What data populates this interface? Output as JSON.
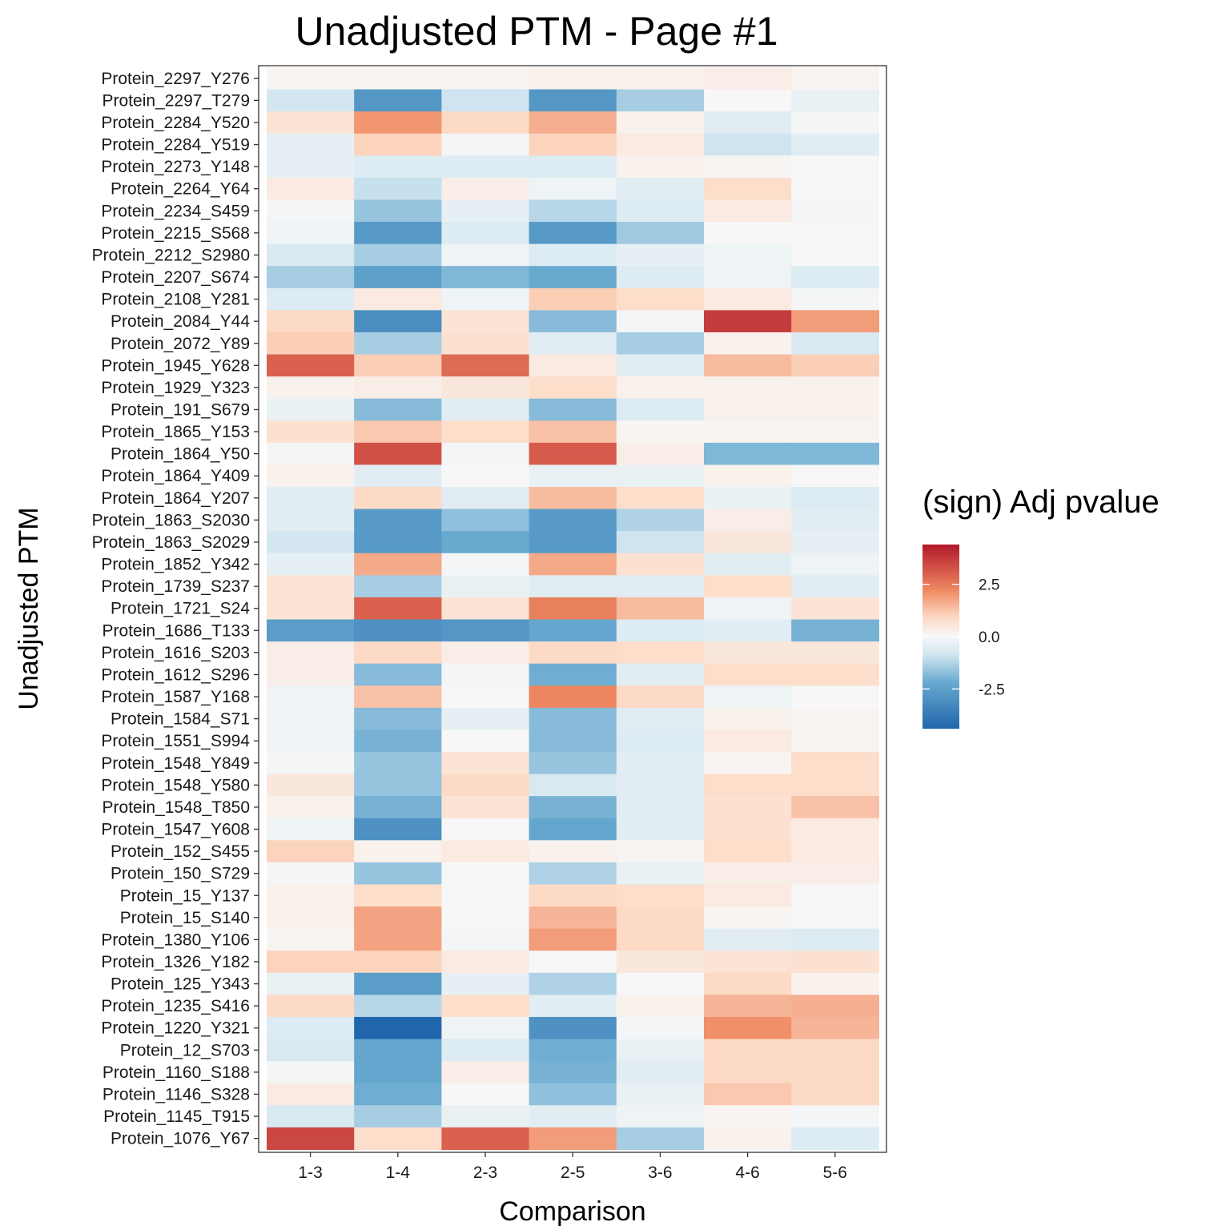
{
  "chart_data": {
    "type": "heatmap",
    "title": "Unadjusted PTM - Page #1",
    "xlabel": "Comparison",
    "ylabel": "Unadjusted PTM",
    "x": [
      "1-3",
      "1-4",
      "2-3",
      "2-5",
      "3-6",
      "4-6",
      "5-6"
    ],
    "y": [
      "Protein_2297_Y276",
      "Protein_2297_T279",
      "Protein_2284_Y520",
      "Protein_2284_Y519",
      "Protein_2273_Y148",
      "Protein_2264_Y64",
      "Protein_2234_S459",
      "Protein_2215_S568",
      "Protein_2212_S2980",
      "Protein_2207_S674",
      "Protein_2108_Y281",
      "Protein_2084_Y44",
      "Protein_2072_Y89",
      "Protein_1945_Y628",
      "Protein_1929_Y323",
      "Protein_191_S679",
      "Protein_1865_Y153",
      "Protein_1864_Y50",
      "Protein_1864_Y409",
      "Protein_1864_Y207",
      "Protein_1863_S2030",
      "Protein_1863_S2029",
      "Protein_1852_Y342",
      "Protein_1739_S237",
      "Protein_1721_S24",
      "Protein_1686_T133",
      "Protein_1616_S203",
      "Protein_1612_S296",
      "Protein_1587_Y168",
      "Protein_1584_S71",
      "Protein_1551_S994",
      "Protein_1548_Y849",
      "Protein_1548_Y580",
      "Protein_1548_T850",
      "Protein_1547_Y608",
      "Protein_152_S455",
      "Protein_150_S729",
      "Protein_15_Y137",
      "Protein_15_S140",
      "Protein_1380_Y106",
      "Protein_1326_Y182",
      "Protein_125_Y343",
      "Protein_1235_S416",
      "Protein_1220_Y321",
      "Protein_12_S703",
      "Protein_1160_S188",
      "Protein_1146_S328",
      "Protein_1145_T915",
      "Protein_1076_Y67"
    ],
    "values": [
      [
        0.1,
        0.1,
        0.1,
        0.2,
        0.2,
        0.3,
        0.1
      ],
      [
        -0.8,
        -2.8,
        -0.9,
        -2.8,
        -1.4,
        0.0,
        -0.3
      ],
      [
        0.6,
        2.0,
        0.9,
        1.6,
        0.2,
        -0.5,
        -0.1
      ],
      [
        -0.4,
        1.0,
        -0.1,
        1.0,
        0.4,
        -0.9,
        -0.5
      ],
      [
        -0.4,
        -0.6,
        -0.6,
        -0.6,
        0.2,
        0.1,
        0.0
      ],
      [
        0.4,
        -1.0,
        0.3,
        -0.2,
        -0.5,
        0.8,
        0.0
      ],
      [
        -0.1,
        -1.6,
        -0.4,
        -1.2,
        -0.6,
        0.4,
        -0.1
      ],
      [
        -0.2,
        -2.7,
        -0.6,
        -2.7,
        -1.5,
        0.0,
        0.0
      ],
      [
        -0.7,
        -1.4,
        -0.2,
        -0.6,
        -0.4,
        -0.2,
        0.0
      ],
      [
        -1.4,
        -2.5,
        -1.9,
        -2.2,
        -0.6,
        -0.2,
        -0.6
      ],
      [
        -0.6,
        0.4,
        -0.2,
        1.1,
        0.8,
        0.4,
        -0.1
      ],
      [
        0.9,
        -3.1,
        0.6,
        -1.8,
        -0.1,
        3.7,
        1.9
      ],
      [
        1.1,
        -1.4,
        0.7,
        -0.5,
        -1.4,
        0.2,
        -0.7
      ],
      [
        3.0,
        1.1,
        2.8,
        0.4,
        -0.5,
        1.4,
        1.1
      ],
      [
        0.2,
        0.3,
        0.5,
        0.8,
        0.2,
        0.2,
        0.2
      ],
      [
        -0.3,
        -1.8,
        -0.5,
        -1.8,
        -0.6,
        0.2,
        0.2
      ],
      [
        0.7,
        1.2,
        0.8,
        1.3,
        0.1,
        0.1,
        0.1
      ],
      [
        -0.1,
        3.3,
        -0.1,
        3.1,
        0.3,
        -1.9,
        -1.9
      ],
      [
        0.2,
        -0.5,
        0.0,
        -0.3,
        -0.3,
        0.2,
        0.0
      ],
      [
        -0.5,
        0.9,
        -0.5,
        1.4,
        0.8,
        -0.3,
        -0.6
      ],
      [
        -0.5,
        -2.7,
        -1.7,
        -2.7,
        -1.3,
        0.3,
        -0.5
      ],
      [
        -0.8,
        -2.7,
        -2.2,
        -2.7,
        -0.9,
        0.5,
        -0.4
      ],
      [
        -0.4,
        1.7,
        -0.1,
        1.7,
        0.7,
        -0.5,
        -0.2
      ],
      [
        0.6,
        -1.4,
        -0.3,
        -0.5,
        -0.5,
        0.8,
        -0.5
      ],
      [
        0.6,
        3.0,
        0.6,
        2.4,
        1.4,
        -0.2,
        0.6
      ],
      [
        -2.6,
        -3.0,
        -2.8,
        -2.3,
        -0.6,
        -0.5,
        -2.0
      ],
      [
        0.3,
        0.9,
        0.3,
        0.9,
        0.8,
        0.5,
        0.5
      ],
      [
        0.3,
        -1.8,
        -0.1,
        -2.1,
        -0.5,
        0.8,
        0.8
      ],
      [
        -0.2,
        1.3,
        0.0,
        2.3,
        0.9,
        -0.2,
        0.0
      ],
      [
        -0.2,
        -1.8,
        -0.4,
        -1.8,
        -0.5,
        0.2,
        0.1
      ],
      [
        -0.2,
        -2.0,
        0.0,
        -1.8,
        -0.6,
        0.4,
        0.1
      ],
      [
        -0.1,
        -1.6,
        0.6,
        -1.6,
        -0.5,
        0.1,
        0.8
      ],
      [
        0.5,
        -1.6,
        0.9,
        -0.7,
        -0.5,
        0.8,
        0.8
      ],
      [
        0.2,
        -2.0,
        0.6,
        -2.0,
        -0.5,
        0.7,
        1.3
      ],
      [
        -0.2,
        -3.0,
        0.0,
        -2.3,
        -0.5,
        0.7,
        0.4
      ],
      [
        1.0,
        0.2,
        0.4,
        0.2,
        0.1,
        0.8,
        0.4
      ],
      [
        -0.1,
        -1.6,
        0.0,
        -1.3,
        -0.3,
        0.3,
        0.3
      ],
      [
        0.2,
        0.8,
        0.0,
        0.9,
        0.8,
        0.4,
        0.0
      ],
      [
        0.2,
        1.8,
        0.0,
        1.5,
        0.9,
        0.1,
        0.0
      ],
      [
        0.1,
        1.8,
        -0.1,
        1.9,
        0.9,
        -0.5,
        -0.6
      ],
      [
        1.0,
        1.0,
        0.4,
        0.0,
        0.5,
        0.6,
        0.7
      ],
      [
        -0.3,
        -2.6,
        -0.4,
        -1.3,
        0.0,
        0.9,
        0.2
      ],
      [
        0.9,
        -1.2,
        0.8,
        -0.5,
        0.2,
        1.5,
        1.6
      ],
      [
        -0.6,
        -4.4,
        -0.2,
        -3.0,
        -0.1,
        2.1,
        1.5
      ],
      [
        -0.7,
        -2.3,
        -0.6,
        -2.1,
        -0.3,
        0.9,
        0.9
      ],
      [
        -0.1,
        -2.3,
        0.3,
        -2.0,
        -0.5,
        0.9,
        0.9
      ],
      [
        0.4,
        -2.1,
        0.0,
        -1.7,
        -0.3,
        1.2,
        0.9
      ],
      [
        -0.7,
        -1.4,
        -0.3,
        -0.5,
        -0.2,
        0.1,
        -0.1
      ],
      [
        3.5,
        0.8,
        3.0,
        1.9,
        -1.4,
        0.2,
        -0.6
      ]
    ],
    "legend": {
      "title": "(sign) Adj pvalue",
      "position": "right",
      "range": [
        -4.4,
        4.4
      ],
      "ticks": [
        2.5,
        0.0,
        -2.5
      ],
      "tick_labels": [
        "2.5",
        "0.0",
        "-2.5"
      ],
      "colors": {
        "low": "#2166ac",
        "mid": "#f7f7f7",
        "high": "#b2182b"
      }
    }
  }
}
